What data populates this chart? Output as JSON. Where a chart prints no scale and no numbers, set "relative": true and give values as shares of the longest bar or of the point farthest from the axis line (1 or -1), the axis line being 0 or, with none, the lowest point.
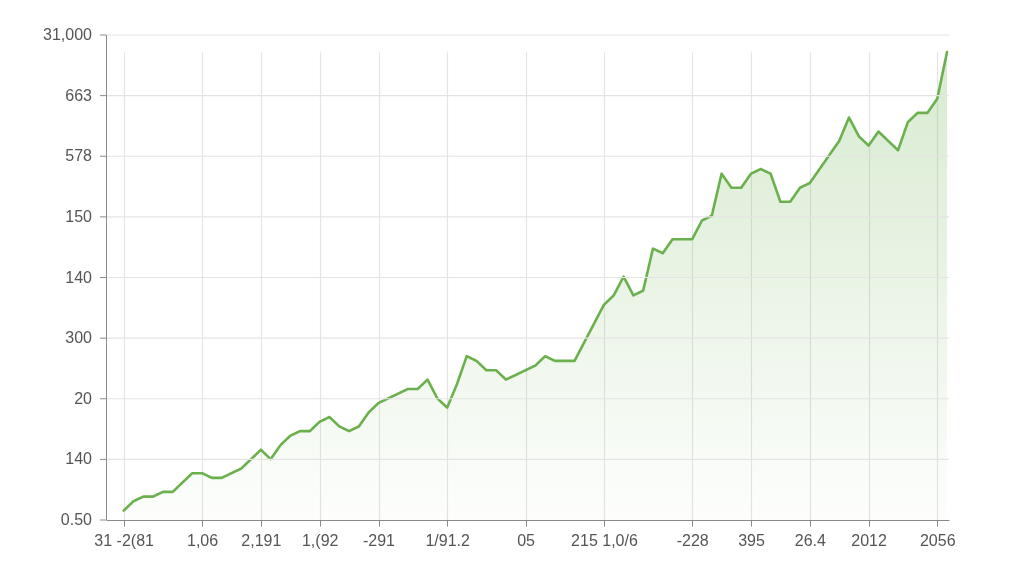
{
  "chart_data": {
    "type": "area",
    "relative": true,
    "categories": [
      "31 -2(81",
      null,
      null,
      null,
      null,
      null,
      null,
      null,
      "1,06",
      null,
      null,
      null,
      null,
      null,
      "2,191",
      null,
      null,
      null,
      null,
      null,
      "1,(92",
      null,
      null,
      null,
      null,
      null,
      "-291",
      null,
      null,
      null,
      null,
      null,
      null,
      "1/91.2",
      null,
      null,
      null,
      null,
      null,
      null,
      null,
      "05",
      null,
      null,
      null,
      null,
      null,
      null,
      null,
      "215 1,0/6",
      null,
      null,
      null,
      null,
      null,
      null,
      null,
      null,
      "-228",
      null,
      null,
      null,
      null,
      null,
      "395",
      null,
      null,
      null,
      null,
      null,
      "26.4",
      null,
      null,
      null,
      null,
      null,
      "2012",
      null,
      null,
      null,
      null,
      null,
      null,
      "2056",
      null
    ],
    "series": [
      {
        "color": "#6ab04c",
        "values": [
          0.02,
          0.04,
          0.05,
          0.05,
          0.06,
          0.06,
          0.08,
          0.1,
          0.1,
          0.09,
          0.09,
          0.1,
          0.11,
          0.13,
          0.15,
          0.13,
          0.16,
          0.18,
          0.19,
          0.19,
          0.21,
          0.22,
          0.2,
          0.19,
          0.2,
          0.23,
          0.25,
          0.26,
          0.27,
          0.28,
          0.28,
          0.3,
          0.26,
          0.24,
          0.29,
          0.35,
          0.34,
          0.32,
          0.32,
          0.3,
          0.31,
          0.32,
          0.33,
          0.35,
          0.34,
          0.34,
          0.34,
          0.38,
          0.42,
          0.46,
          0.48,
          0.52,
          0.48,
          0.49,
          0.58,
          0.57,
          0.6,
          0.6,
          0.6,
          0.64,
          0.65,
          0.74,
          0.71,
          0.71,
          0.74,
          0.75,
          0.74,
          0.68,
          0.68,
          0.71,
          0.72,
          0.75,
          0.78,
          0.81,
          0.86,
          0.82,
          0.8,
          0.83,
          0.81,
          0.79,
          0.85,
          0.87,
          0.87,
          0.9,
          1
        ]
      }
    ],
    "annotations": [
      "31,000",
      "663",
      "578",
      "150",
      "140",
      "300",
      "20",
      "140",
      "0.50"
    ],
    "grid": true
  }
}
